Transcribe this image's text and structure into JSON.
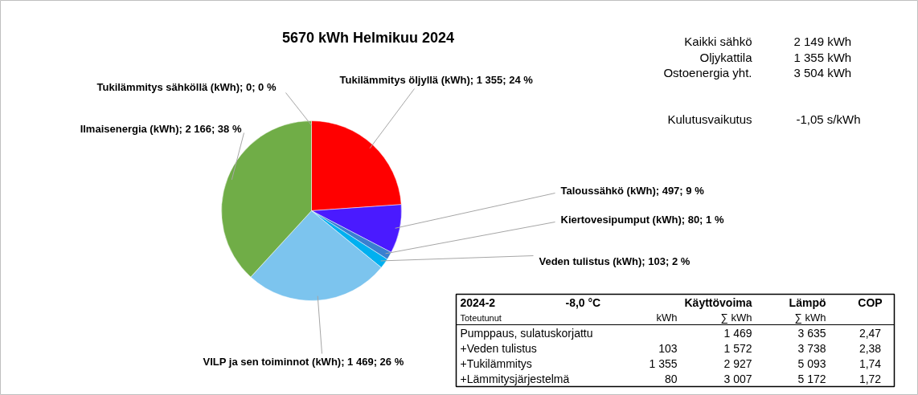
{
  "chart_data": {
    "type": "pie",
    "title": "5670  kWh Helmikuu 2024",
    "categories": [
      "Tukilämmitys öljyllä (kWh); 1 355; 24 %",
      "Taloussähkö (kWh); 497; 9 %",
      "Kiertovesipumput (kWh); 80; 1 %",
      "Veden tulistus (kWh); 103; 2 %",
      "VILP ja sen toiminnot (kWh); 1 469; 26 %",
      "Ilmaisenergia (kWh); 2 166; 38 %",
      "Tukilämmitys sähköllä (kWh); 0; 0 %"
    ],
    "values": [
      1355,
      497,
      80,
      103,
      1469,
      2166,
      0
    ],
    "colors": [
      "#ff0000",
      "#4a1aff",
      "#3a7fd0",
      "#00b0f0",
      "#7cc4ee",
      "#70ad47",
      "#ffc000"
    ],
    "annotations": [
      "Kaikki sähkö",
      "2 149 kWh",
      "Oljykattila",
      "1 355 kWh",
      "Ostoenergia yht.",
      "3 504 kWh",
      "Kulutusvaikutus",
      "-1,05 s/kWh",
      "2024-2",
      "-8,0  °C",
      "Käyttövoima",
      "Lämpö",
      "COP",
      "Toteutunut",
      "kWh",
      "∑ kWh",
      "∑ kWh",
      "Pumppaus, sulatuskorjattu",
      "1 469",
      "3 635",
      "2,47",
      " +Veden tulistus",
      "103",
      "1 572",
      "3 738",
      "2,38",
      " +Tukilämmitys",
      "1 355",
      "2 927",
      "5 093",
      "1,74",
      " +Lämmitysjärjestelmä",
      "80",
      "3 007",
      "5 172",
      "1,72"
    ]
  }
}
